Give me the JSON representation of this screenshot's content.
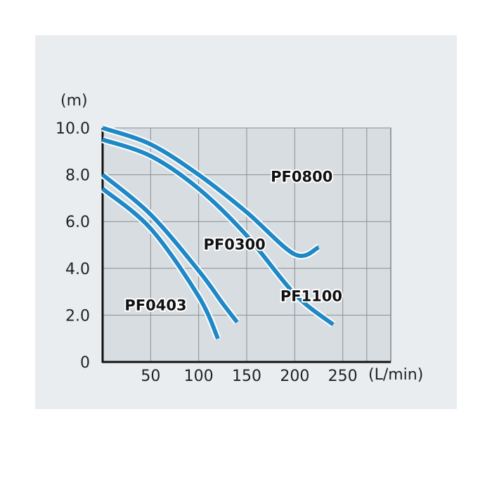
{
  "chart_data": {
    "type": "line",
    "ylabel": "(m)",
    "xlabel": "(L/min)",
    "xlim": [
      0,
      300
    ],
    "ylim": [
      0,
      10
    ],
    "x_tick_labels": [
      "50",
      "100",
      "150",
      "200",
      "250"
    ],
    "x_tick_values": [
      50,
      100,
      150,
      200,
      250
    ],
    "y_tick_labels": [
      "0",
      "2.0",
      "4.0",
      "6.0",
      "8.0",
      "10.0"
    ],
    "y_tick_values": [
      0,
      2,
      4,
      6,
      8,
      10
    ],
    "grid": true,
    "line_color": "#1f88c6",
    "series": [
      {
        "name": "PF0800",
        "x": [
          0,
          50,
          100,
          150,
          200,
          225
        ],
        "y": [
          10.0,
          9.3,
          8.0,
          6.4,
          4.6,
          4.9
        ]
      },
      {
        "name": "PF1100",
        "x": [
          0,
          50,
          100,
          150,
          200,
          240
        ],
        "y": [
          9.5,
          8.8,
          7.4,
          5.4,
          2.9,
          1.6
        ]
      },
      {
        "name": "PF0300",
        "x": [
          0,
          50,
          100,
          125,
          140
        ],
        "y": [
          8.0,
          6.3,
          3.9,
          2.5,
          1.7
        ]
      },
      {
        "name": "PF0403",
        "x": [
          0,
          50,
          100,
          120
        ],
        "y": [
          7.4,
          5.7,
          2.8,
          1.0
        ]
      }
    ]
  }
}
